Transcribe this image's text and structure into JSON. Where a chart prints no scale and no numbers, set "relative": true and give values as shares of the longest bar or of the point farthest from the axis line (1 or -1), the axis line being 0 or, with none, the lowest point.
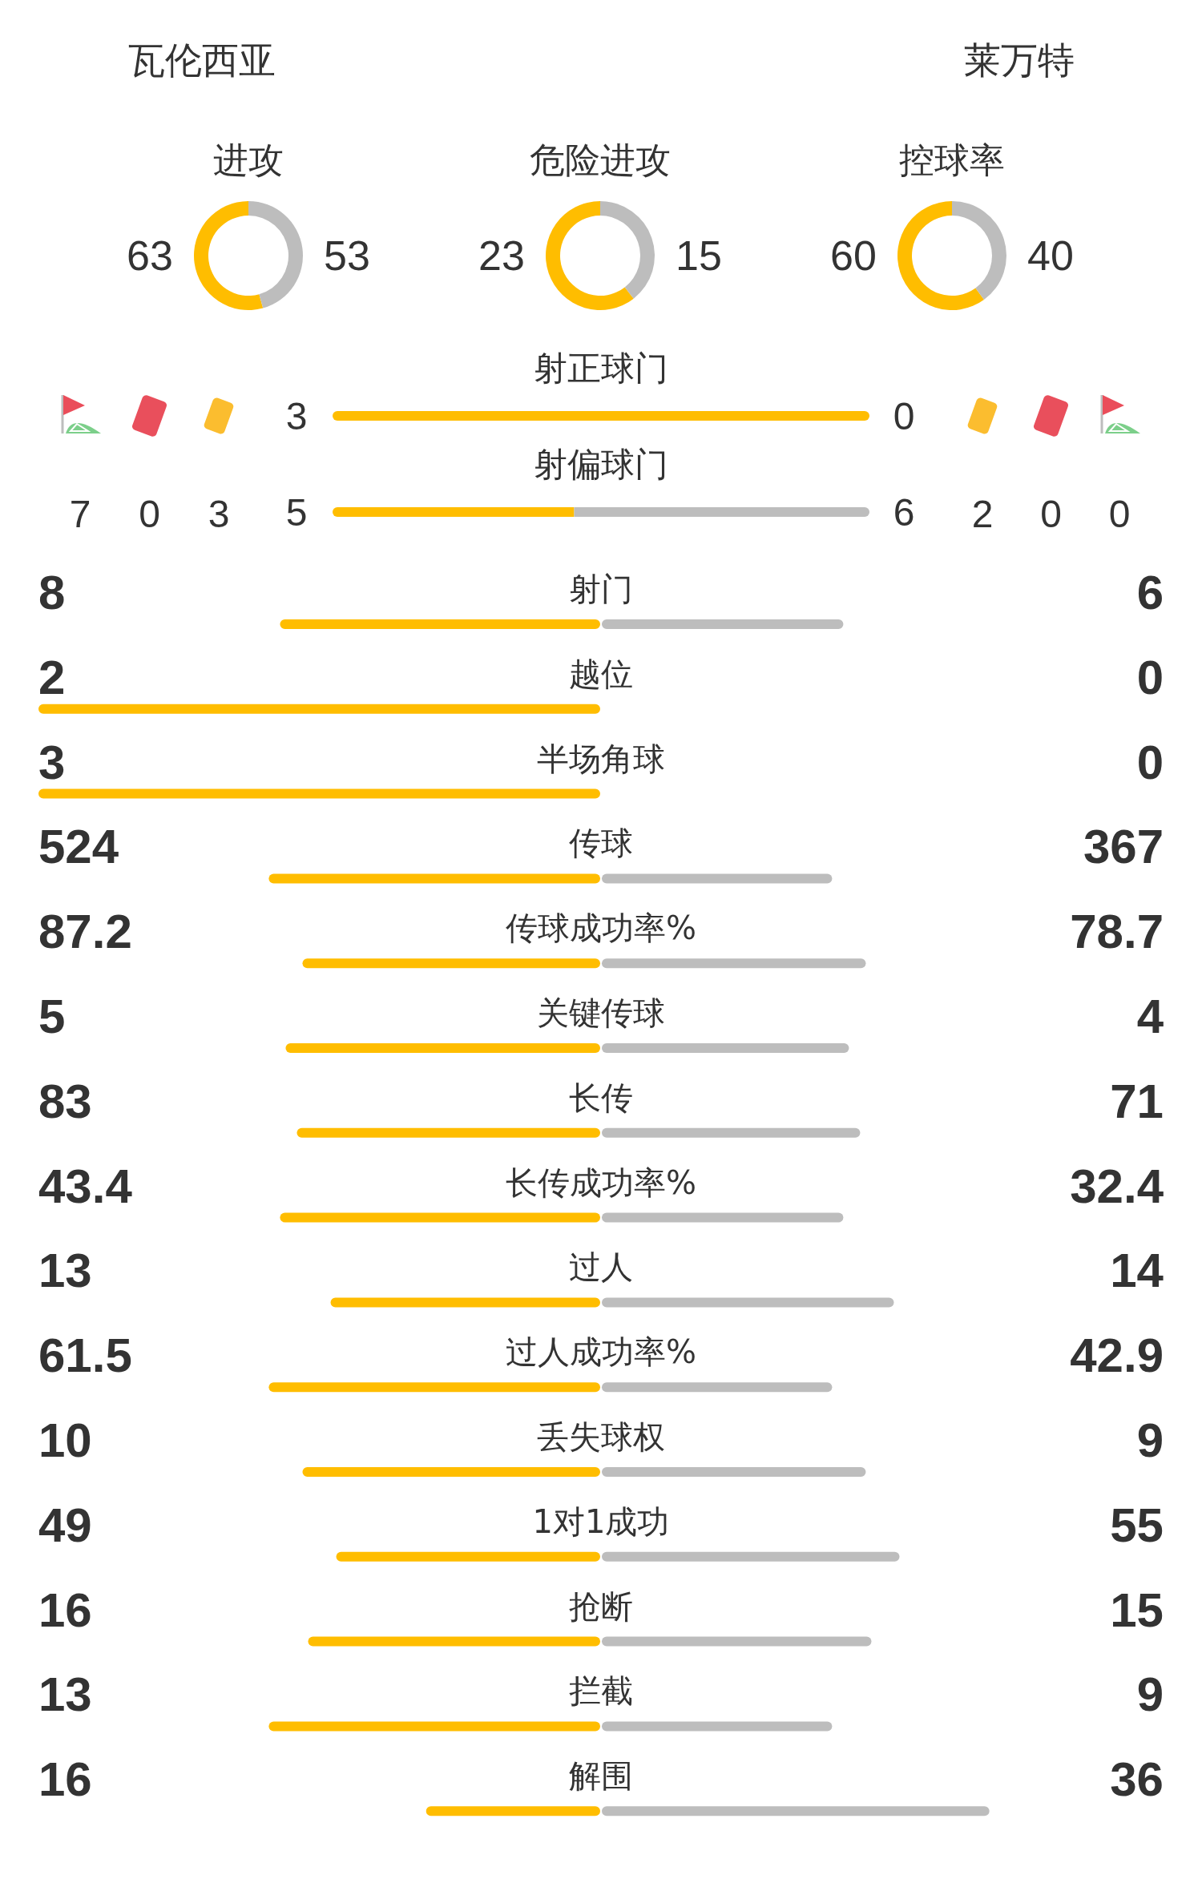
{
  "chart_data": [
    {
      "type": "other",
      "annotations": [
        "瓦伦西亚",
        "莱万特"
      ]
    },
    {
      "type": "donut",
      "title": "进攻",
      "categories": [
        null,
        null
      ],
      "values": [
        63,
        53
      ],
      "colors": [
        "#ffbd00",
        "#bdbdbd"
      ],
      "data_labels": true
    },
    {
      "type": "donut",
      "title": "危险进攻",
      "categories": [
        null,
        null
      ],
      "values": [
        23,
        15
      ],
      "colors": [
        "#ffbd00",
        "#bdbdbd"
      ],
      "data_labels": true
    },
    {
      "type": "donut",
      "title": "控球率",
      "categories": [
        null,
        null
      ],
      "values": [
        60,
        40
      ],
      "colors": [
        "#ffbd00",
        "#bdbdbd"
      ],
      "data_labels": true
    },
    {
      "type": "bar",
      "orientation": "horizontal",
      "stacked": true,
      "relative": true,
      "categories": [
        "射正球门",
        "射偏球门"
      ],
      "series": [
        {
          "color": "#ffbd00",
          "values": [
            1,
            0.45
          ]
        },
        {
          "color": "#bdbdbd",
          "values": [
            0,
            0.55
          ]
        }
      ]
    },
    {
      "type": "other",
      "annotations": [
        "3",
        "0",
        "5",
        "6"
      ]
    },
    {
      "type": "other",
      "annotations": [
        "7",
        "0",
        "3",
        "2",
        "0",
        "0"
      ]
    },
    {
      "type": "bar",
      "orientation": "horizontal",
      "stacked": true,
      "relative": true,
      "categories": [
        "射门",
        "越位",
        "半场角球",
        "传球",
        "传球成功率%",
        "关键传球",
        "长传",
        "长传成功率%",
        "过人",
        "过人成功率%",
        "丢失球权",
        "1对1成功",
        "抢断",
        "拦截",
        "解围"
      ],
      "series": [
        {
          "color": "#ffbd00",
          "values": [
            -0.57,
            -1,
            -1,
            -0.59,
            -0.53,
            -0.56,
            -0.54,
            -0.57,
            -0.48,
            -0.59,
            -0.53,
            -0.47,
            -0.52,
            -0.59,
            -0.31
          ]
        },
        {
          "color": "#bdbdbd",
          "values": [
            0.43,
            0,
            0,
            0.41,
            0.47,
            0.44,
            0.46,
            0.43,
            0.52,
            0.41,
            0.47,
            0.53,
            0.48,
            0.41,
            0.69
          ]
        }
      ]
    },
    {
      "type": "other",
      "annotations": [
        "8",
        "6",
        "2",
        "0",
        "3",
        "0",
        "524",
        "367",
        "87.2",
        "78.7",
        "5",
        "4",
        "83",
        "71",
        "43.4",
        "32.4",
        "13",
        "14",
        "61.5",
        "42.9",
        "10",
        "9",
        "49",
        "55",
        "16",
        "15",
        "13",
        "9",
        "16",
        "36"
      ]
    }
  ]
}
